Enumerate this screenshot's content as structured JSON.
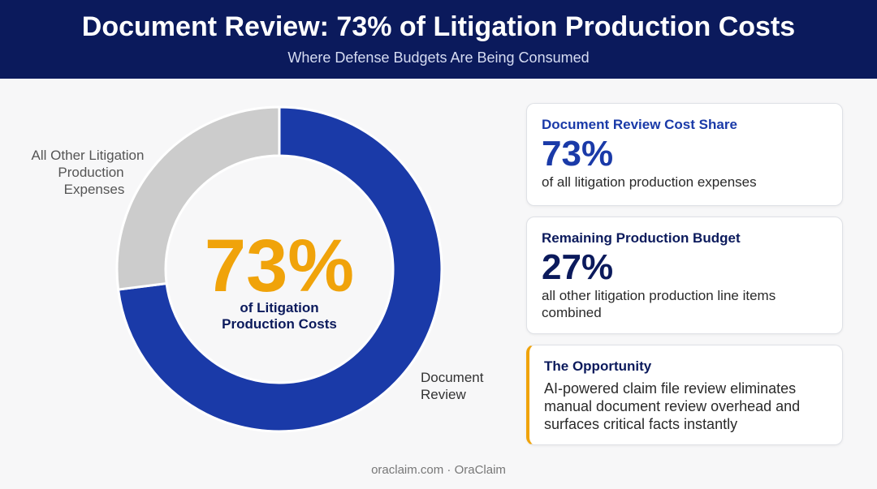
{
  "header": {
    "title": "Document Review: 73% of Litigation Production Costs",
    "subtitle": "Where Defense Budgets Are Being Consumed"
  },
  "chart_data": {
    "type": "pie",
    "donut": true,
    "categories": [
      "Document Review",
      "All Other Litigation Production Expenses"
    ],
    "values": [
      73,
      27
    ],
    "unit": "%",
    "colors": [
      "#1a3aa8",
      "#cccccc"
    ],
    "center_value": "73%",
    "center_label_lines": [
      "of Litigation",
      "Production Costs"
    ],
    "label_lines": [
      [
        "Document",
        "Review"
      ],
      [
        "All Other Litigation",
        "Production",
        "Expenses"
      ]
    ]
  },
  "cards": [
    {
      "title": "Document Review Cost Share",
      "value": "73%",
      "desc": "of all litigation production expenses"
    },
    {
      "title": "Remaining Production Budget",
      "value": "27%",
      "desc": "all other litigation production line items combined"
    },
    {
      "title": "The Opportunity",
      "desc": "AI-powered claim file review eliminates manual document review overhead and surfaces critical facts instantly"
    }
  ],
  "colors": {
    "header_bg": "#0b1a5c",
    "accent_blue": "#1a3aa8",
    "accent_orange": "#f0a30a",
    "other_gray": "#cccccc"
  },
  "footer": "oraclaim.com · OraClaim"
}
